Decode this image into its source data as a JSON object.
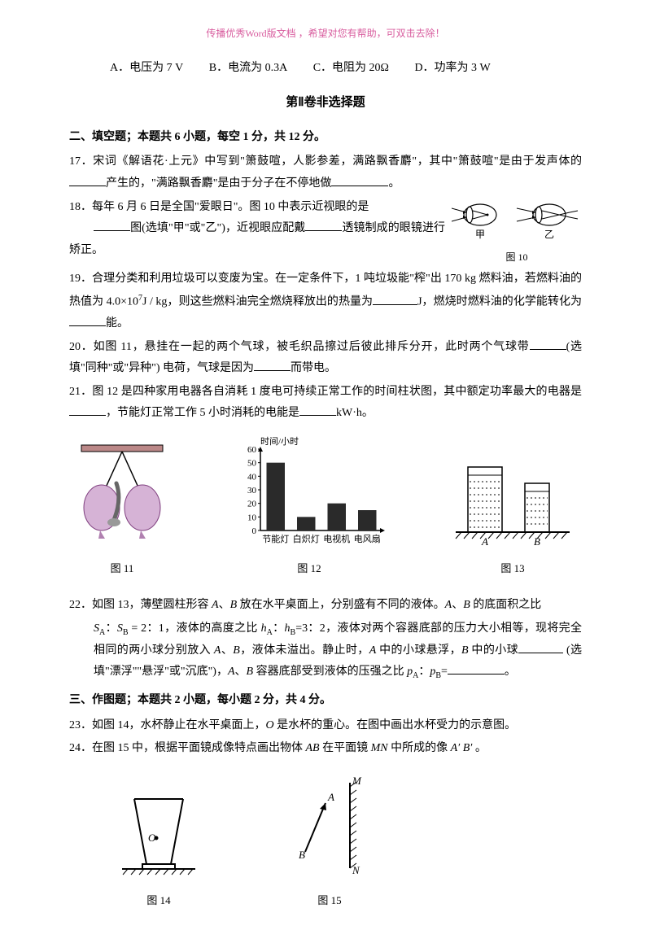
{
  "header_hint": "传播优秀Word版文档 ，希望对您有帮助，可双击去除！",
  "options_q16": {
    "A": "A．电压为 7 V",
    "B": "B．电流为 0.3A",
    "C": "C．电阻为 20Ω",
    "D": "D．功率为 3 W"
  },
  "section2_title": "第Ⅱ卷非选择题",
  "section2_header": "二、填空题；本题共 6 小题，每空 1 分，共 12 分。",
  "q17": {
    "num": "17．",
    "t1": "宋词《解语花·上元》中写到\"箫鼓喧，人影参差，满路飘香麝\"，其中\"箫鼓喧\"是由于发声体的",
    "t2": "产生的，\"满路飘香麝\"是由于分子在不停地做",
    "t3": "。"
  },
  "q18": {
    "num": "18．",
    "t1": "每年 6 月 6 日是全国\"爱眼日\"。图 10 中表示近视眼的是",
    "t2": "图(选填\"甲\"或\"乙\")，近视眼应配戴",
    "t3": "透镜制成的眼镜进行矫正。"
  },
  "fig10": {
    "label_l": "甲",
    "label_r": "乙",
    "caption": "图 10"
  },
  "q19": {
    "num": "19．",
    "t1": "合理分类和利用垃圾可以变废为宝。在一定条件下，1 吨垃圾能\"榨\"出 170 kg 燃料油，若燃料油的热值为 4.0×10",
    "sup": "7",
    "t1b": "J / kg，则这些燃料油完全燃烧释放出的热量为",
    "t2": "J，燃烧时燃料油的化学能转化为",
    "t3": "能。"
  },
  "q20": {
    "num": "20．",
    "t1": "如图 11，悬挂在一起的两个气球，被毛织品擦过后彼此排斥分开，此时两个气球带",
    "t2": "(选填\"同种\"或\"异种\") 电荷，气球是因为",
    "t3": "而带电。"
  },
  "q21": {
    "num": "21．",
    "t1": "图 12 是四种家用电器各自消耗 1 度电可持续正常工作的时间柱状图，其中额定功率最大的电器是",
    "t2": "，节能灯正常工作 5 小时消耗的电能是",
    "t3": "kW·h。"
  },
  "fig11": {
    "caption": "图 11"
  },
  "fig12": {
    "caption": "图 12",
    "ylabel": "时间/小时",
    "yticks": [
      0,
      10,
      20,
      30,
      40,
      50,
      60
    ],
    "categories": [
      "节能灯",
      "白炽灯",
      "电视机",
      "电风扇"
    ],
    "values": [
      50,
      10,
      20,
      15
    ],
    "bar_color": "#2a2a2a",
    "axis_color": "#000000",
    "fontsize": 11,
    "width": 190,
    "height": 140
  },
  "fig13": {
    "caption": "图 13",
    "label_a": "A",
    "label_b": "B"
  },
  "q22": {
    "num": "22．",
    "t1": "如图 13，薄壁圆柱形容 ",
    "iA": "A",
    "d1": "、",
    "iB": "B",
    "t1b": " 放在水平桌面上，分别盛有不同的液体。",
    "t1c": " 的底面积之比",
    "line2a": "S",
    "subA": "A",
    "colon": "：",
    "subB": "B",
    "t2": " = 2：1，液体的高度之比 ",
    "h": "h",
    "t2b": "=3：2，液体对两个容器底部的压力大小相等，现将完全相同的两小球分别放入 ",
    "t3": "，液体未溢出。静止时，",
    "t3b": " 中的小球悬浮，",
    "t3c": " 中的小球",
    "fill_hint": " (选填\"漂浮\"\"悬浮\"或\"沉底\")，",
    "t4": " 容器底部受到液体的压强之比 ",
    "p": "p",
    "eq": "=",
    "period": "。"
  },
  "section3_header": "三、作图题；本题共 2 小题，每小题 2 分，共 4 分。",
  "q23": {
    "num": "23．",
    "t": "如图 14，水杯静止在水平桌面上，",
    "O": "O",
    "t2": " 是水杯的重心。在图中画出水杯受力的示意图。"
  },
  "q24": {
    "num": "24．",
    "t": "在图 15 中，根据平面镜成像特点画出物体 ",
    "AB": "AB",
    "t2": " 在平面镜 ",
    "MN": "MN",
    "t3": " 中所成的像 ",
    "ApBp": "A′ B′",
    "t4": " 。"
  },
  "fig14": {
    "caption": "图 14",
    "O": "O"
  },
  "fig15": {
    "caption": "图 15",
    "A": "A",
    "B": "B",
    "M": "M",
    "N": "N"
  }
}
